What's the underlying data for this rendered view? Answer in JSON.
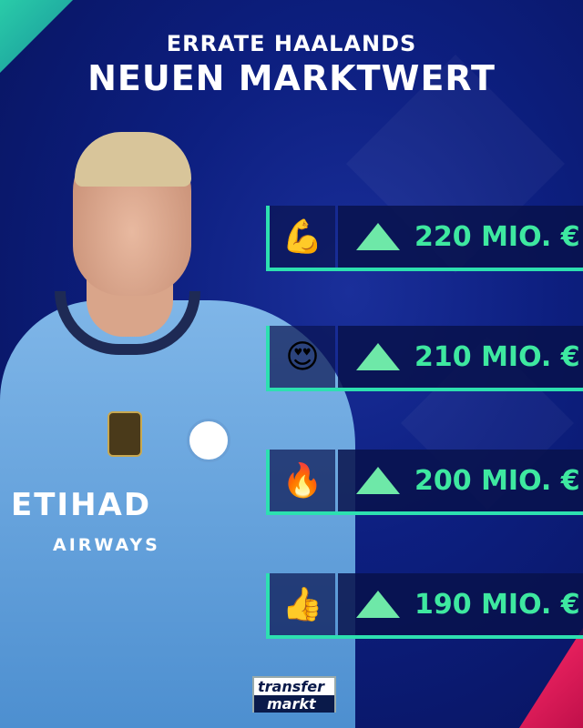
{
  "title": {
    "line1": "ERRATE HAALANDS",
    "line2": "NEUEN MARKTWERT"
  },
  "player": {
    "sponsor_line1": "ETIHAD",
    "sponsor_line2": "AIRWAYS"
  },
  "options": [
    {
      "emoji": "💪",
      "icon": "triangle-up-icon",
      "value": "220 MIO. €"
    },
    {
      "emoji": "😍",
      "icon": "triangle-up-icon",
      "value": "210 MIO. €"
    },
    {
      "emoji": "🔥",
      "icon": "triangle-up-icon",
      "value": "200 MIO. €"
    },
    {
      "emoji": "👍",
      "icon": "triangle-up-icon",
      "value": "190 MIO. €"
    }
  ],
  "logo": {
    "line1": "transfer",
    "line2": "markt"
  },
  "colors": {
    "accent": "#2de0b0",
    "price": "#3ee8a0",
    "background": "#0d1f80"
  }
}
